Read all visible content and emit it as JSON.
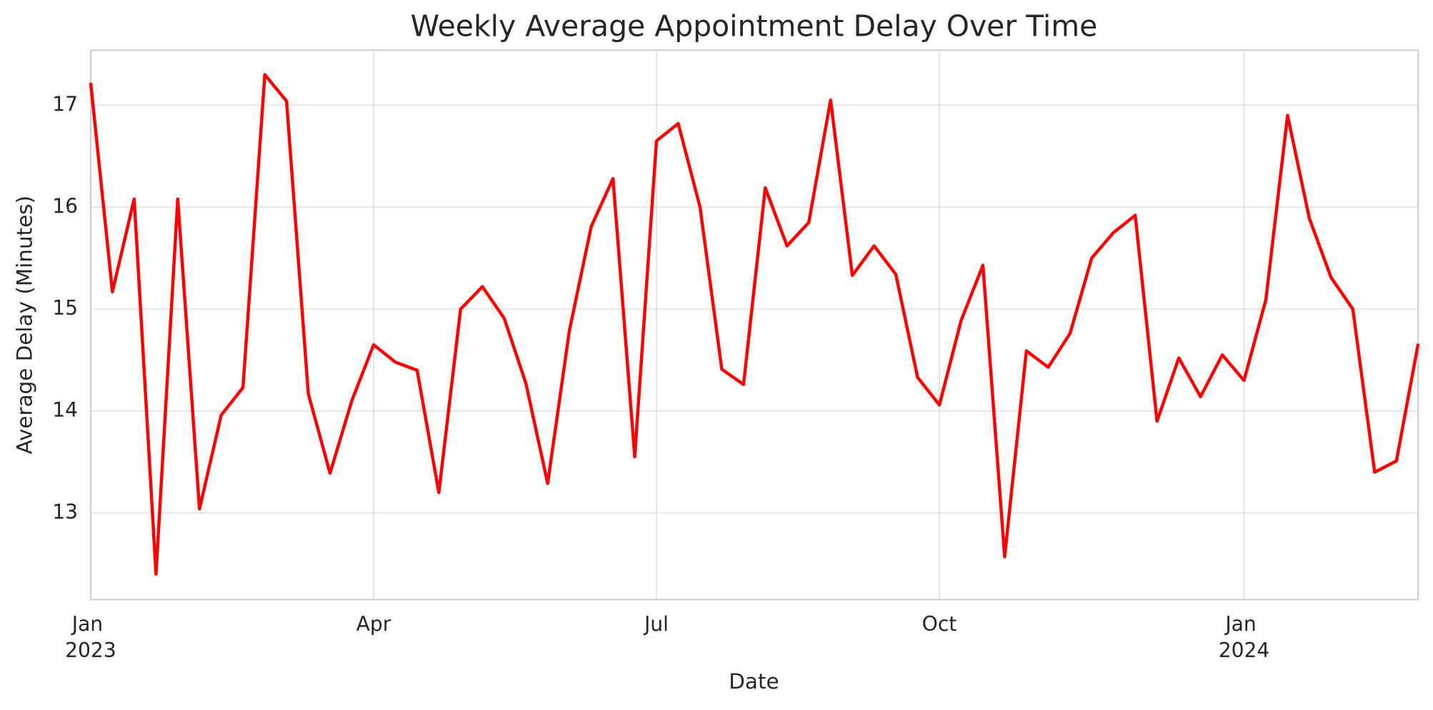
{
  "chart_data": {
    "type": "line",
    "title": "Weekly Average Appointment Delay Over Time",
    "x_label": "Date",
    "y_label": "Average Delay (Minutes)",
    "categories": [
      "Jan 2023",
      null,
      null,
      null,
      null,
      null,
      null,
      null,
      null,
      null,
      null,
      null,
      null,
      "Apr",
      null,
      null,
      null,
      null,
      null,
      null,
      null,
      null,
      null,
      null,
      null,
      null,
      "Jul",
      null,
      null,
      null,
      null,
      null,
      null,
      null,
      null,
      null,
      null,
      null,
      null,
      "Oct",
      null,
      null,
      null,
      null,
      null,
      null,
      null,
      null,
      null,
      null,
      null,
      null,
      null,
      "Jan 2024",
      null,
      null,
      null,
      null,
      null,
      null,
      null,
      null
    ],
    "series": [
      {
        "name": "Average Delay",
        "color": "#ff0000",
        "values": [
          17.22,
          15.17,
          16.08,
          12.4,
          16.08,
          13.04,
          13.96,
          14.23,
          17.3,
          17.04,
          14.17,
          13.39,
          14.1,
          14.65,
          14.48,
          14.4,
          13.2,
          15.0,
          15.22,
          14.91,
          14.27,
          13.29,
          14.79,
          15.81,
          16.28,
          13.55,
          16.65,
          16.82,
          16.0,
          14.41,
          14.26,
          16.19,
          15.62,
          15.85,
          17.05,
          15.33,
          15.62,
          15.34,
          14.33,
          14.06,
          14.89,
          15.43,
          12.57,
          14.59,
          14.43,
          14.76,
          15.5,
          15.75,
          15.92,
          13.9,
          14.52,
          14.14,
          14.55,
          14.3,
          15.09,
          16.9,
          15.89,
          15.31,
          15.0,
          13.4,
          13.51,
          14.66
        ]
      }
    ],
    "ylim": [
      12.15,
      17.54
    ],
    "yticks": [
      13,
      14,
      15,
      16,
      17
    ],
    "grid": true
  }
}
